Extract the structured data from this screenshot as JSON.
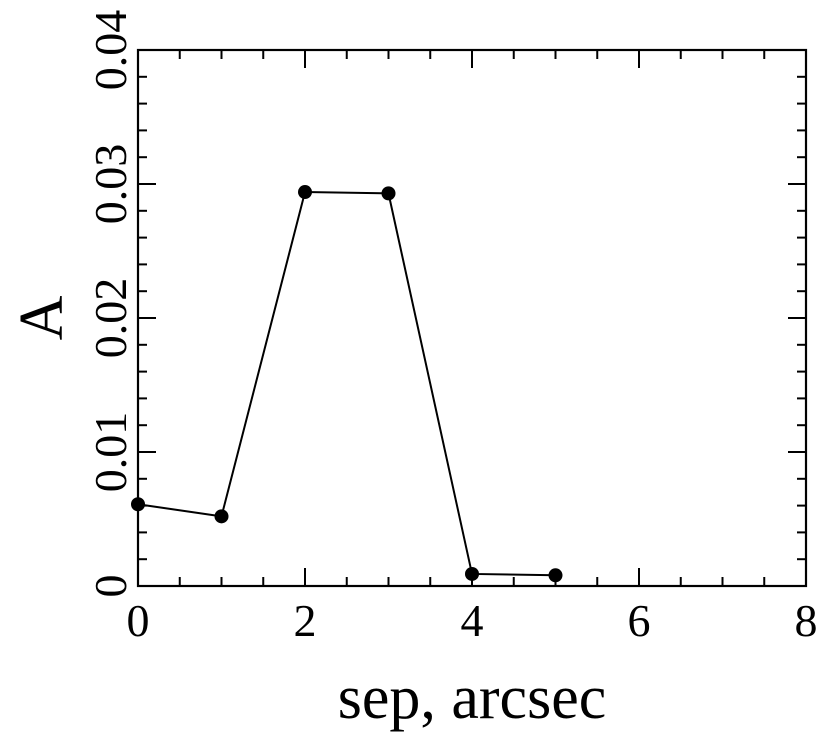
{
  "chart_data": {
    "type": "line",
    "title": "",
    "xlabel": "sep, arcsec",
    "ylabel": "A",
    "xlim": [
      0,
      8
    ],
    "ylim": [
      0,
      0.04
    ],
    "x_ticks": [
      0,
      2,
      4,
      6,
      8
    ],
    "x_tick_labels": [
      "0",
      "2",
      "4",
      "6",
      "8"
    ],
    "y_ticks": [
      0,
      0.01,
      0.02,
      0.03,
      0.04
    ],
    "y_tick_labels": [
      "0",
      "0.01",
      "0.02",
      "0.03",
      "0.04"
    ],
    "grid": false,
    "series": [
      {
        "x": [
          0,
          1,
          2,
          3,
          4,
          5
        ],
        "y": [
          0.0061,
          0.0052,
          0.0294,
          0.0293,
          0.0009,
          0.0008
        ],
        "color": "#000000",
        "marker": "circle"
      }
    ]
  }
}
